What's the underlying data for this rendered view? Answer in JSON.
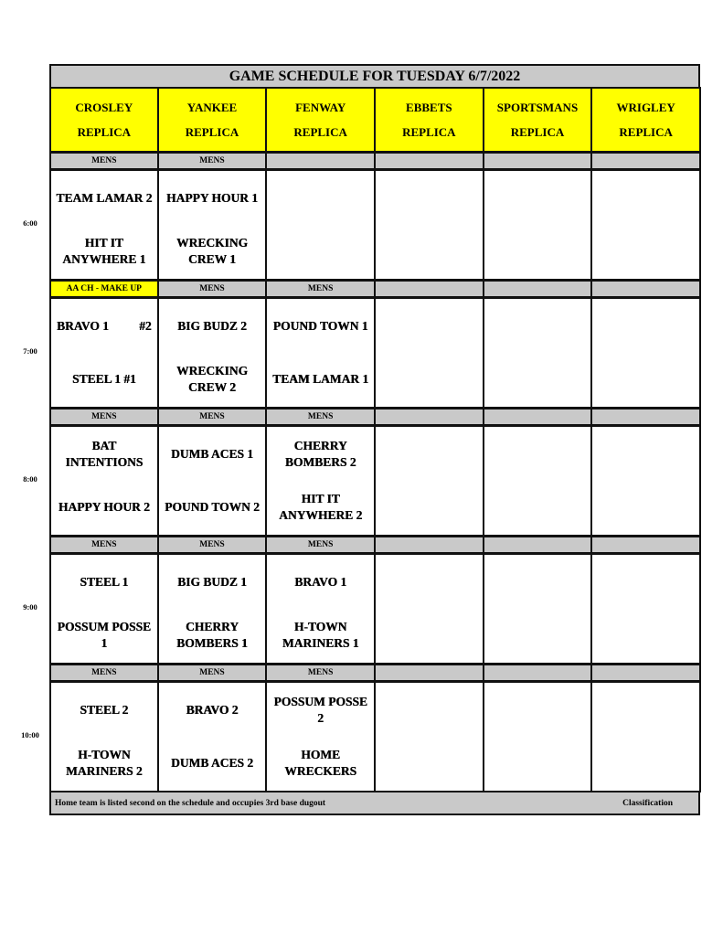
{
  "title": "GAME SCHEDULE FOR TUESDAY 6/7/2022",
  "fields": [
    {
      "name": "CROSLEY",
      "sub": "REPLICA"
    },
    {
      "name": "YANKEE",
      "sub": "REPLICA"
    },
    {
      "name": "FENWAY",
      "sub": "REPLICA"
    },
    {
      "name": "EBBETS",
      "sub": "REPLICA"
    },
    {
      "name": "SPORTSMANS",
      "sub": "REPLICA"
    },
    {
      "name": "WRIGLEY",
      "sub": "REPLICA"
    }
  ],
  "colors": {
    "header": "#ffff00",
    "class_bar": "#c9c9c9",
    "highlight": "#ffff00"
  },
  "slots": [
    {
      "time": "6:00",
      "games": [
        {
          "class": "MENS",
          "away": "TEAM LAMAR 2",
          "home": "HIT IT ANYWHERE 1"
        },
        {
          "class": "MENS",
          "away": "HAPPY HOUR 1",
          "home": "WRECKING CREW 1"
        },
        {
          "class": "",
          "away": "",
          "home": ""
        },
        {
          "class": "",
          "away": "",
          "home": ""
        },
        {
          "class": "",
          "away": "",
          "home": ""
        },
        {
          "class": "",
          "away": "",
          "home": ""
        }
      ]
    },
    {
      "time": "7:00",
      "games": [
        {
          "class": "AA CH - MAKE UP",
          "highlight": true,
          "away": "BRAVO 1",
          "away_note": "#2",
          "home": "STEEL 1 #1"
        },
        {
          "class": "MENS",
          "away": "BIG BUDZ 2",
          "home": "WRECKING CREW 2"
        },
        {
          "class": "MENS",
          "away": "POUND TOWN 1",
          "home": "TEAM LAMAR 1"
        },
        {
          "class": "",
          "away": "",
          "home": ""
        },
        {
          "class": "",
          "away": "",
          "home": ""
        },
        {
          "class": "",
          "away": "",
          "home": ""
        }
      ]
    },
    {
      "time": "8:00",
      "games": [
        {
          "class": "MENS",
          "away": "BAT INTENTIONS",
          "home": "HAPPY HOUR 2"
        },
        {
          "class": "MENS",
          "away": "DUMB ACES 1",
          "home": "POUND TOWN 2"
        },
        {
          "class": "MENS",
          "away": "CHERRY BOMBERS 2",
          "home": "HIT IT ANYWHERE 2"
        },
        {
          "class": "",
          "away": "",
          "home": ""
        },
        {
          "class": "",
          "away": "",
          "home": ""
        },
        {
          "class": "",
          "away": "",
          "home": ""
        }
      ]
    },
    {
      "time": "9:00",
      "games": [
        {
          "class": "MENS",
          "away": "STEEL 1",
          "home": "POSSUM POSSE 1"
        },
        {
          "class": "MENS",
          "away": "BIG BUDZ 1",
          "home": "CHERRY BOMBERS 1"
        },
        {
          "class": "MENS",
          "away": "BRAVO 1",
          "home": "H-TOWN MARINERS 1"
        },
        {
          "class": "",
          "away": "",
          "home": ""
        },
        {
          "class": "",
          "away": "",
          "home": ""
        },
        {
          "class": "",
          "away": "",
          "home": ""
        }
      ]
    },
    {
      "time": "10:00",
      "games": [
        {
          "class": "MENS",
          "away": "STEEL 2",
          "home": "H-TOWN MARINERS 2"
        },
        {
          "class": "MENS",
          "away": "BRAVO 2",
          "home": "DUMB ACES 2"
        },
        {
          "class": "MENS",
          "away": "POSSUM POSSE 2",
          "home": "HOME WRECKERS"
        },
        {
          "class": "",
          "away": "",
          "home": ""
        },
        {
          "class": "",
          "away": "",
          "home": ""
        },
        {
          "class": "",
          "away": "",
          "home": ""
        }
      ]
    }
  ],
  "footer": {
    "note": "Home team is listed second on the schedule and occupies 3rd base dugout",
    "classification_label": "Classification"
  }
}
